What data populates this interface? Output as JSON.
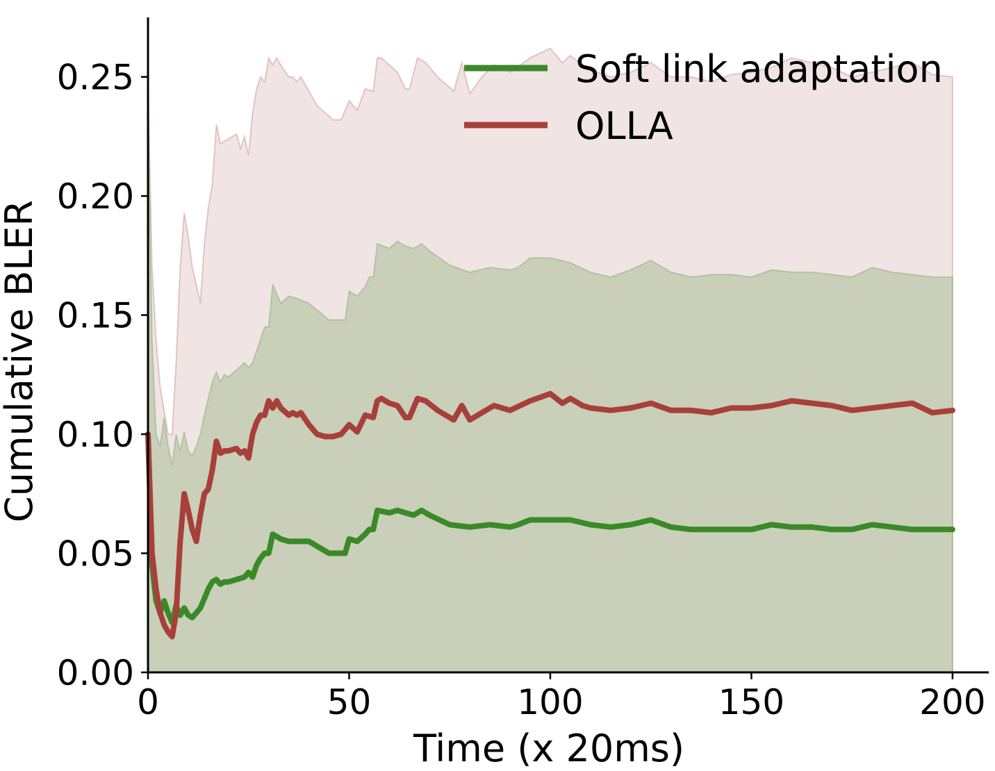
{
  "chart_data": {
    "type": "line",
    "title": "",
    "xlabel": "Time (x 20ms)",
    "ylabel": "Cumulative BLER",
    "xlim": [
      0,
      209
    ],
    "ylim": [
      0,
      0.275
    ],
    "xticks": [
      0,
      50,
      100,
      150,
      200
    ],
    "xtick_labels": [
      "0",
      "50",
      "100",
      "150",
      "200"
    ],
    "yticks": [
      0.0,
      0.05,
      0.1,
      0.15,
      0.2,
      0.25
    ],
    "ytick_labels": [
      "0.00",
      "0.05",
      "0.10",
      "0.15",
      "0.20",
      "0.25"
    ],
    "grid": false,
    "legend_position": "top-right",
    "series": [
      {
        "name": "Soft link adaptation",
        "color": "#3a8a28",
        "band_fill": "#c9cfb9",
        "x": [
          0,
          1,
          2,
          3,
          4,
          5,
          6,
          7,
          8,
          9,
          10,
          11,
          12,
          13,
          14,
          15,
          16,
          17,
          18,
          19,
          20,
          22,
          24,
          25,
          26,
          27,
          28,
          29,
          30,
          31,
          33,
          35,
          37,
          40,
          45,
          48,
          49,
          50,
          52,
          54,
          55,
          56,
          57,
          60,
          62,
          64,
          66,
          68,
          70,
          75,
          80,
          85,
          90,
          92,
          95,
          100,
          105,
          110,
          115,
          120,
          125,
          130,
          135,
          140,
          145,
          150,
          155,
          160,
          165,
          170,
          175,
          180,
          185,
          190,
          195,
          200
        ],
        "y": [
          0.1,
          0.045,
          0.03,
          0.025,
          0.03,
          0.025,
          0.021,
          0.028,
          0.024,
          0.027,
          0.024,
          0.023,
          0.025,
          0.027,
          0.031,
          0.035,
          0.038,
          0.039,
          0.037,
          0.038,
          0.038,
          0.039,
          0.04,
          0.042,
          0.04,
          0.045,
          0.048,
          0.05,
          0.05,
          0.058,
          0.056,
          0.055,
          0.055,
          0.055,
          0.05,
          0.05,
          0.05,
          0.056,
          0.055,
          0.058,
          0.06,
          0.06,
          0.068,
          0.067,
          0.068,
          0.067,
          0.066,
          0.068,
          0.066,
          0.062,
          0.061,
          0.062,
          0.061,
          0.062,
          0.064,
          0.064,
          0.064,
          0.062,
          0.061,
          0.062,
          0.064,
          0.061,
          0.06,
          0.06,
          0.06,
          0.06,
          0.062,
          0.061,
          0.061,
          0.06,
          0.06,
          0.062,
          0.061,
          0.06,
          0.06,
          0.06
        ],
        "upper": [
          0.235,
          0.14,
          0.1,
          0.095,
          0.107,
          0.095,
          0.087,
          0.1,
          0.093,
          0.101,
          0.093,
          0.091,
          0.095,
          0.1,
          0.108,
          0.115,
          0.122,
          0.126,
          0.122,
          0.125,
          0.124,
          0.127,
          0.13,
          0.128,
          0.13,
          0.135,
          0.14,
          0.145,
          0.145,
          0.163,
          0.155,
          0.158,
          0.157,
          0.155,
          0.148,
          0.148,
          0.148,
          0.16,
          0.158,
          0.162,
          0.166,
          0.166,
          0.18,
          0.178,
          0.181,
          0.179,
          0.178,
          0.18,
          0.177,
          0.171,
          0.168,
          0.17,
          0.169,
          0.17,
          0.174,
          0.174,
          0.172,
          0.168,
          0.166,
          0.169,
          0.173,
          0.168,
          0.166,
          0.167,
          0.167,
          0.166,
          0.169,
          0.168,
          0.168,
          0.167,
          0.166,
          0.17,
          0.168,
          0.167,
          0.166,
          0.166
        ],
        "lower": [
          0,
          0,
          0,
          0,
          0,
          0,
          0,
          0,
          0,
          0,
          0,
          0,
          0,
          0,
          0,
          0,
          0,
          0,
          0,
          0,
          0,
          0,
          0,
          0,
          0,
          0,
          0,
          0,
          0,
          0,
          0,
          0,
          0,
          0,
          0,
          0,
          0,
          0,
          0,
          0,
          0,
          0,
          0,
          0,
          0,
          0,
          0,
          0,
          0,
          0,
          0,
          0,
          0,
          0,
          0,
          0,
          0,
          0,
          0,
          0,
          0,
          0,
          0,
          0,
          0,
          0,
          0,
          0,
          0,
          0,
          0,
          0,
          0,
          0,
          0,
          0
        ]
      },
      {
        "name": "OLLA",
        "color": "#a8403a",
        "band_fill": "#f0e4e4",
        "x": [
          0,
          1,
          2,
          3,
          4,
          5,
          6,
          7,
          8,
          9,
          10,
          11,
          12,
          13,
          14,
          15,
          16,
          17,
          18,
          19,
          20,
          22,
          23,
          24,
          25,
          26,
          27,
          28,
          29,
          30,
          31,
          32,
          33,
          35,
          36,
          37,
          38,
          40,
          42,
          44,
          46,
          48,
          50,
          52,
          54,
          56,
          57,
          58,
          60,
          62,
          64,
          65,
          67,
          69,
          72,
          76,
          78,
          80,
          83,
          86,
          90,
          95,
          100,
          103,
          105,
          108,
          110,
          115,
          120,
          125,
          130,
          135,
          140,
          145,
          150,
          155,
          160,
          165,
          170,
          175,
          180,
          185,
          190,
          195,
          200
        ],
        "y": [
          0.1,
          0.05,
          0.035,
          0.025,
          0.02,
          0.017,
          0.015,
          0.025,
          0.055,
          0.075,
          0.068,
          0.06,
          0.055,
          0.066,
          0.075,
          0.077,
          0.085,
          0.097,
          0.092,
          0.093,
          0.093,
          0.094,
          0.092,
          0.093,
          0.09,
          0.1,
          0.105,
          0.108,
          0.108,
          0.114,
          0.111,
          0.114,
          0.111,
          0.108,
          0.109,
          0.108,
          0.109,
          0.104,
          0.1,
          0.099,
          0.099,
          0.1,
          0.104,
          0.101,
          0.108,
          0.107,
          0.114,
          0.115,
          0.113,
          0.112,
          0.107,
          0.107,
          0.115,
          0.114,
          0.11,
          0.106,
          0.112,
          0.106,
          0.109,
          0.112,
          0.11,
          0.114,
          0.117,
          0.113,
          0.115,
          0.112,
          0.111,
          0.11,
          0.111,
          0.113,
          0.11,
          0.11,
          0.109,
          0.111,
          0.111,
          0.112,
          0.114,
          0.113,
          0.112,
          0.11,
          0.111,
          0.112,
          0.113,
          0.109,
          0.11
        ],
        "upper": [
          0.25,
          0.17,
          0.14,
          0.12,
          0.11,
          0.1,
          0.1,
          0.13,
          0.17,
          0.193,
          0.183,
          0.17,
          0.163,
          0.155,
          0.18,
          0.195,
          0.205,
          0.23,
          0.222,
          0.223,
          0.224,
          0.226,
          0.22,
          0.225,
          0.217,
          0.235,
          0.245,
          0.25,
          0.248,
          0.258,
          0.255,
          0.258,
          0.255,
          0.25,
          0.25,
          0.248,
          0.25,
          0.244,
          0.238,
          0.235,
          0.232,
          0.232,
          0.24,
          0.236,
          0.245,
          0.244,
          0.258,
          0.258,
          0.255,
          0.252,
          0.245,
          0.245,
          0.258,
          0.256,
          0.25,
          0.244,
          0.256,
          0.243,
          0.25,
          0.255,
          0.252,
          0.258,
          0.262,
          0.256,
          0.259,
          0.255,
          0.253,
          0.25,
          0.252,
          0.256,
          0.25,
          0.25,
          0.248,
          0.251,
          0.252,
          0.254,
          0.258,
          0.256,
          0.254,
          0.25,
          0.252,
          0.254,
          0.256,
          0.251,
          0.25
        ],
        "lower": [
          0,
          0,
          0,
          0,
          0,
          0,
          0,
          0,
          0,
          0,
          0,
          0,
          0,
          0,
          0,
          0,
          0,
          0,
          0,
          0,
          0,
          0,
          0,
          0,
          0,
          0,
          0,
          0,
          0,
          0,
          0,
          0,
          0,
          0,
          0,
          0,
          0,
          0,
          0,
          0,
          0,
          0,
          0,
          0,
          0,
          0,
          0,
          0,
          0,
          0,
          0,
          0,
          0,
          0,
          0,
          0,
          0,
          0,
          0,
          0,
          0,
          0,
          0,
          0,
          0,
          0,
          0,
          0,
          0,
          0,
          0,
          0,
          0,
          0,
          0,
          0,
          0,
          0,
          0,
          0,
          0,
          0,
          0,
          0,
          0
        ]
      }
    ]
  }
}
